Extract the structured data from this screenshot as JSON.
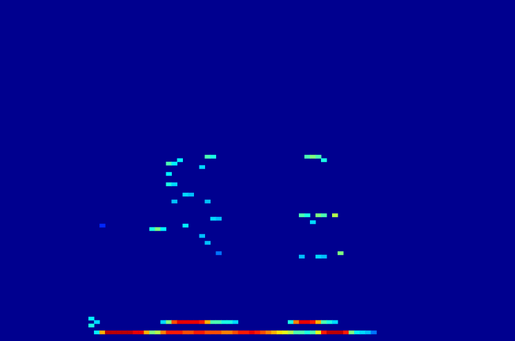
{
  "chart_data": {
    "type": "heatmap",
    "x_bins": 93,
    "y_bins": 99,
    "tick_labels": false,
    "grid": false,
    "color_range": [
      0,
      1
    ],
    "cells": [
      [
        17,
        2,
        0.35
      ],
      [
        18,
        2,
        0.7
      ],
      [
        19,
        2,
        0.95
      ],
      [
        20,
        2,
        0.95
      ],
      [
        21,
        2,
        0.95
      ],
      [
        22,
        2,
        0.95
      ],
      [
        23,
        2,
        0.95
      ],
      [
        24,
        2,
        0.9
      ],
      [
        25,
        2,
        0.9
      ],
      [
        26,
        2,
        0.7
      ],
      [
        27,
        2,
        0.5
      ],
      [
        28,
        2,
        0.55
      ],
      [
        29,
        2,
        0.75
      ],
      [
        30,
        2,
        0.85
      ],
      [
        31,
        2,
        0.85
      ],
      [
        32,
        2,
        0.85
      ],
      [
        33,
        2,
        0.8
      ],
      [
        34,
        2,
        0.8
      ],
      [
        35,
        2,
        0.85
      ],
      [
        36,
        2,
        0.85
      ],
      [
        37,
        2,
        0.8
      ],
      [
        38,
        2,
        0.8
      ],
      [
        39,
        2,
        0.8
      ],
      [
        40,
        2,
        0.75
      ],
      [
        41,
        2,
        0.75
      ],
      [
        42,
        2,
        0.8
      ],
      [
        43,
        2,
        0.85
      ],
      [
        44,
        2,
        0.85
      ],
      [
        45,
        2,
        0.9
      ],
      [
        46,
        2,
        0.85
      ],
      [
        47,
        2,
        0.8
      ],
      [
        48,
        2,
        0.75
      ],
      [
        49,
        2,
        0.7
      ],
      [
        50,
        2,
        0.65
      ],
      [
        51,
        2,
        0.6
      ],
      [
        52,
        2,
        0.55
      ],
      [
        53,
        2,
        0.45
      ],
      [
        54,
        2,
        0.45
      ],
      [
        55,
        2,
        0.4
      ],
      [
        56,
        2,
        0.45
      ],
      [
        57,
        2,
        0.6
      ],
      [
        58,
        2,
        0.85
      ],
      [
        59,
        2,
        0.95
      ],
      [
        60,
        2,
        0.95
      ],
      [
        61,
        2,
        0.95
      ],
      [
        62,
        2,
        0.85
      ],
      [
        63,
        2,
        0.5
      ],
      [
        64,
        2,
        0.35
      ],
      [
        65,
        2,
        0.3
      ],
      [
        66,
        2,
        0.25
      ],
      [
        67,
        2,
        0.2
      ],
      [
        29,
        5,
        0.3
      ],
      [
        30,
        5,
        0.5
      ],
      [
        31,
        5,
        0.8
      ],
      [
        32,
        5,
        0.9
      ],
      [
        33,
        5,
        0.9
      ],
      [
        34,
        5,
        0.9
      ],
      [
        35,
        5,
        0.9
      ],
      [
        36,
        5,
        0.85
      ],
      [
        37,
        5,
        0.7
      ],
      [
        38,
        5,
        0.45
      ],
      [
        39,
        5,
        0.45
      ],
      [
        40,
        5,
        0.4
      ],
      [
        41,
        5,
        0.4
      ],
      [
        42,
        5,
        0.3
      ],
      [
        52,
        5,
        0.4
      ],
      [
        53,
        5,
        0.75
      ],
      [
        54,
        5,
        0.9
      ],
      [
        55,
        5,
        0.9
      ],
      [
        56,
        5,
        0.85
      ],
      [
        57,
        5,
        0.7
      ],
      [
        58,
        5,
        0.45
      ],
      [
        59,
        5,
        0.4
      ],
      [
        60,
        5,
        0.3
      ],
      [
        16,
        4,
        0.4
      ],
      [
        16,
        6,
        0.35
      ],
      [
        17,
        5,
        0.3
      ],
      [
        30,
        51,
        0.45
      ],
      [
        31,
        51,
        0.35
      ],
      [
        32,
        52,
        0.35
      ],
      [
        37,
        53,
        0.45
      ],
      [
        38,
        53,
        0.4
      ],
      [
        30,
        48,
        0.35
      ],
      [
        36,
        50,
        0.3
      ],
      [
        30,
        45,
        0.4
      ],
      [
        31,
        45,
        0.3
      ],
      [
        33,
        42,
        0.3
      ],
      [
        34,
        42,
        0.25
      ],
      [
        31,
        40,
        0.25
      ],
      [
        37,
        40,
        0.25
      ],
      [
        27,
        32,
        0.4
      ],
      [
        28,
        32,
        0.5
      ],
      [
        29,
        32,
        0.35
      ],
      [
        33,
        33,
        0.35
      ],
      [
        38,
        35,
        0.3
      ],
      [
        39,
        35,
        0.25
      ],
      [
        36,
        30,
        0.25
      ],
      [
        37,
        28,
        0.25
      ],
      [
        39,
        25,
        0.2
      ],
      [
        18,
        33,
        0.15
      ],
      [
        55,
        53,
        0.45
      ],
      [
        56,
        53,
        0.5
      ],
      [
        57,
        53,
        0.45
      ],
      [
        58,
        52,
        0.4
      ],
      [
        54,
        36,
        0.45
      ],
      [
        55,
        36,
        0.4
      ],
      [
        57,
        36,
        0.5
      ],
      [
        58,
        36,
        0.45
      ],
      [
        60,
        36,
        0.55
      ],
      [
        56,
        34,
        0.3
      ],
      [
        57,
        24,
        0.3
      ],
      [
        58,
        24,
        0.25
      ],
      [
        61,
        25,
        0.5
      ],
      [
        54,
        24,
        0.25
      ]
    ]
  }
}
